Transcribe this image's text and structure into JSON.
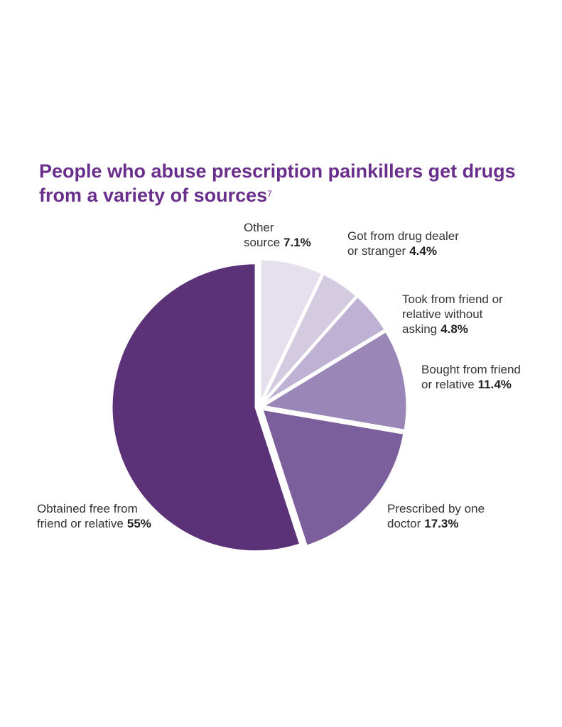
{
  "chart_data": {
    "type": "pie",
    "title": "People who abuse prescription painkillers get drugs from a variety of sources",
    "footnote_ref": "7",
    "categories": [
      "Other source",
      "Got from drug dealer or stranger",
      "Took from friend or relative without asking",
      "Bought from friend or relative",
      "Prescribed by one doctor",
      "Obtained free from friend or relative"
    ],
    "values": [
      7.1,
      4.4,
      4.8,
      11.4,
      17.3,
      55
    ],
    "value_labels": [
      "7.1%",
      "4.4%",
      "4.8%",
      "11.4%",
      "17.3%",
      "55%"
    ],
    "colors": [
      "#e6e0ee",
      "#d4cbe1",
      "#bfb1d3",
      "#9b86b8",
      "#7b5f9c",
      "#5b3278"
    ]
  }
}
